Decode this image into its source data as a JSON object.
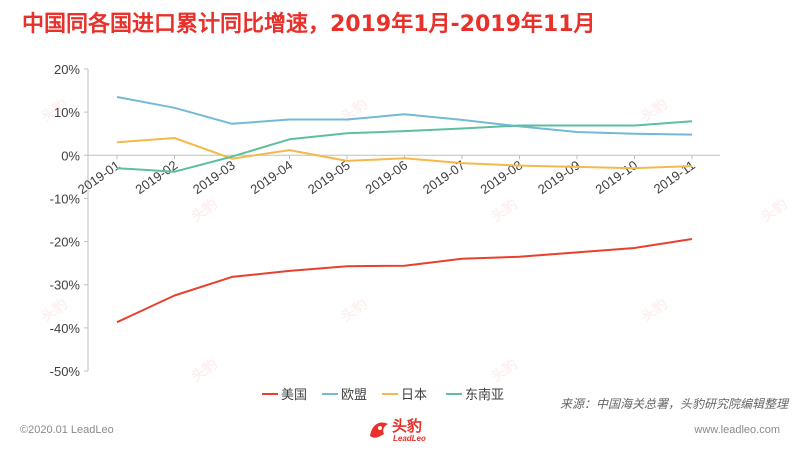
{
  "title": "中国同各国进口累计同比增速，2019年1月-2019年11月",
  "source": "来源：中国海关总署，头豹研究院编辑整理",
  "footer": {
    "copyright": "©2020.01 LeadLeo",
    "website": "www.leadleo.com",
    "logo_text": "头豹",
    "logo_sub": "LeadLeo"
  },
  "watermark_text": "头豹",
  "colors": {
    "title": "#e8312a",
    "usa": "#e8402e",
    "eu": "#74b9d6",
    "japan": "#f5b94a",
    "asean": "#5dbf9e",
    "axis": "#bfbfbf"
  },
  "chart_data": {
    "type": "line",
    "categories": [
      "2019-01",
      "2019-02",
      "2019-03",
      "2019-04",
      "2019-05",
      "2019-06",
      "2019-07",
      "2019-08",
      "2019-09",
      "2019-10",
      "2019-11"
    ],
    "y_ticks": [
      "20%",
      "10%",
      "0%",
      "-10%",
      "-20%",
      "-30%",
      "-40%",
      "-50%"
    ],
    "ylim": [
      -50,
      20
    ],
    "grid": false,
    "legend_position": "bottom",
    "series": [
      {
        "name": "美国",
        "color": "#e8402e",
        "values": [
          -38.7,
          -32.5,
          -28.2,
          -26.8,
          -25.7,
          -25.6,
          -24.0,
          -23.5,
          -22.5,
          -21.5,
          -19.4
        ]
      },
      {
        "name": "欧盟",
        "color": "#74b9d6",
        "values": [
          13.5,
          11.0,
          7.3,
          8.3,
          8.3,
          9.5,
          8.2,
          6.7,
          5.4,
          5.0,
          4.8
        ]
      },
      {
        "name": "日本",
        "color": "#f5b94a",
        "values": [
          3.0,
          4.0,
          -0.8,
          1.2,
          -1.3,
          -0.7,
          -1.8,
          -2.4,
          -2.7,
          -3.0,
          -2.5
        ]
      },
      {
        "name": "东南亚",
        "color": "#5dbf9e",
        "values": [
          -3.0,
          -3.8,
          -0.3,
          3.7,
          5.1,
          5.6,
          6.2,
          6.9,
          6.9,
          6.9,
          7.9
        ]
      }
    ]
  }
}
